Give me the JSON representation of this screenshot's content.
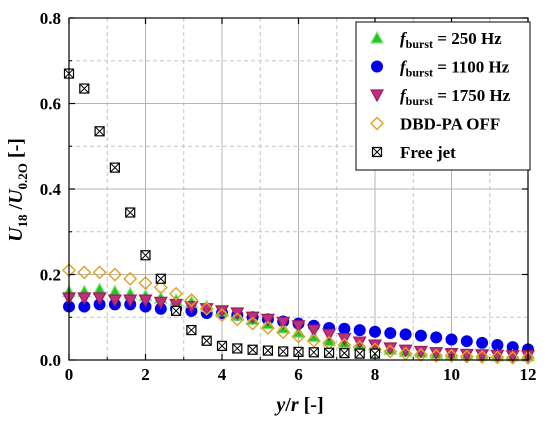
{
  "chart_data": {
    "type": "scatter",
    "xlabel": {
      "var": "y",
      "slash": "/",
      "var2": "r",
      "unit": " [-]"
    },
    "ylabel": {
      "u": "U",
      "sub1": "18",
      "slash": " /",
      "u2": "U",
      "sub2": "0.2O",
      "unit": " [-]"
    },
    "xlim": [
      0,
      12
    ],
    "ylim": [
      0,
      0.8
    ],
    "xticks": [
      "0",
      "2",
      "4",
      "6",
      "8",
      "10",
      "12"
    ],
    "yticks": [
      "0.0",
      "0.2",
      "0.4",
      "0.6",
      "0.8"
    ],
    "grid": true,
    "legend_position": "top-right",
    "legend": [
      {
        "prefix": "f",
        "sub": "burst",
        "rest": " = 250 Hz"
      },
      {
        "prefix": "f",
        "sub": "burst",
        "rest": " = 1100 Hz"
      },
      {
        "prefix": "f",
        "sub": "burst",
        "rest": " = 1750 Hz"
      },
      {
        "prefix": "",
        "sub": "",
        "rest": "DBD-PA OFF"
      },
      {
        "prefix": "",
        "sub": "",
        "rest": "Free jet"
      }
    ],
    "series": [
      {
        "marker": "triangle-up",
        "fill": "#22c322",
        "stroke": "#7de87d",
        "points": [
          [
            0,
            0.16
          ],
          [
            0.4,
            0.16
          ],
          [
            0.8,
            0.165
          ],
          [
            1.2,
            0.16
          ],
          [
            1.6,
            0.155
          ],
          [
            2.0,
            0.15
          ],
          [
            2.4,
            0.145
          ],
          [
            2.8,
            0.14
          ],
          [
            3.2,
            0.135
          ],
          [
            3.6,
            0.125
          ],
          [
            4.0,
            0.115
          ],
          [
            4.4,
            0.105
          ],
          [
            4.8,
            0.095
          ],
          [
            5.2,
            0.085
          ],
          [
            5.6,
            0.075
          ],
          [
            6.0,
            0.065
          ],
          [
            6.4,
            0.055
          ],
          [
            6.8,
            0.045
          ],
          [
            7.2,
            0.04
          ],
          [
            7.6,
            0.035
          ],
          [
            8.0,
            0.03
          ],
          [
            8.4,
            0.025
          ],
          [
            8.8,
            0.02
          ],
          [
            9.2,
            0.018
          ],
          [
            9.6,
            0.015
          ],
          [
            10.0,
            0.013
          ],
          [
            10.4,
            0.012
          ],
          [
            10.8,
            0.011
          ],
          [
            11.2,
            0.01
          ],
          [
            11.6,
            0.01
          ],
          [
            12.0,
            0.01
          ]
        ]
      },
      {
        "marker": "circle",
        "fill": "#0000ee",
        "stroke": "#0000ee",
        "points": [
          [
            0,
            0.125
          ],
          [
            0.4,
            0.125
          ],
          [
            0.8,
            0.13
          ],
          [
            1.2,
            0.13
          ],
          [
            1.6,
            0.13
          ],
          [
            2.0,
            0.125
          ],
          [
            2.4,
            0.12
          ],
          [
            2.8,
            0.12
          ],
          [
            3.2,
            0.115
          ],
          [
            3.6,
            0.11
          ],
          [
            4.0,
            0.11
          ],
          [
            4.4,
            0.105
          ],
          [
            4.8,
            0.1
          ],
          [
            5.2,
            0.095
          ],
          [
            5.6,
            0.09
          ],
          [
            6.0,
            0.085
          ],
          [
            6.4,
            0.08
          ],
          [
            6.8,
            0.075
          ],
          [
            7.2,
            0.073
          ],
          [
            7.6,
            0.07
          ],
          [
            8.0,
            0.066
          ],
          [
            8.4,
            0.063
          ],
          [
            8.8,
            0.06
          ],
          [
            9.2,
            0.057
          ],
          [
            9.6,
            0.053
          ],
          [
            10.0,
            0.048
          ],
          [
            10.4,
            0.044
          ],
          [
            10.8,
            0.04
          ],
          [
            11.2,
            0.035
          ],
          [
            11.6,
            0.03
          ],
          [
            12.0,
            0.025
          ]
        ]
      },
      {
        "marker": "triangle-down",
        "fill": "#c0307a",
        "stroke": "#a01a60",
        "points": [
          [
            0,
            0.145
          ],
          [
            0.4,
            0.145
          ],
          [
            0.8,
            0.145
          ],
          [
            1.2,
            0.14
          ],
          [
            1.6,
            0.14
          ],
          [
            2.0,
            0.14
          ],
          [
            2.4,
            0.135
          ],
          [
            2.8,
            0.13
          ],
          [
            3.2,
            0.125
          ],
          [
            3.6,
            0.12
          ],
          [
            4.0,
            0.115
          ],
          [
            4.4,
            0.11
          ],
          [
            4.8,
            0.1
          ],
          [
            5.2,
            0.095
          ],
          [
            5.6,
            0.088
          ],
          [
            6.0,
            0.08
          ],
          [
            6.4,
            0.07
          ],
          [
            6.8,
            0.06
          ],
          [
            7.2,
            0.05
          ],
          [
            7.6,
            0.042
          ],
          [
            8.0,
            0.035
          ],
          [
            8.4,
            0.028
          ],
          [
            8.8,
            0.023
          ],
          [
            9.2,
            0.02
          ],
          [
            9.6,
            0.017
          ],
          [
            10.0,
            0.015
          ],
          [
            10.4,
            0.013
          ],
          [
            10.8,
            0.012
          ],
          [
            11.2,
            0.011
          ],
          [
            11.6,
            0.01
          ],
          [
            12.0,
            0.01
          ]
        ]
      },
      {
        "marker": "diamond",
        "fill": "none",
        "stroke": "#e0a020",
        "points": [
          [
            0,
            0.21
          ],
          [
            0.4,
            0.205
          ],
          [
            0.8,
            0.205
          ],
          [
            1.2,
            0.2
          ],
          [
            1.6,
            0.19
          ],
          [
            2.0,
            0.18
          ],
          [
            2.4,
            0.17
          ],
          [
            2.8,
            0.155
          ],
          [
            3.2,
            0.14
          ],
          [
            3.6,
            0.12
          ],
          [
            4.0,
            0.105
          ],
          [
            4.4,
            0.095
          ],
          [
            4.8,
            0.085
          ],
          [
            5.2,
            0.075
          ],
          [
            5.6,
            0.065
          ],
          [
            6.0,
            0.055
          ],
          [
            6.4,
            0.045
          ],
          [
            6.8,
            0.04
          ],
          [
            7.2,
            0.035
          ],
          [
            7.6,
            0.03
          ],
          [
            8.0,
            0.025
          ],
          [
            8.4,
            0.02
          ],
          [
            8.8,
            0.015
          ],
          [
            9.2,
            0.012
          ],
          [
            9.6,
            0.01
          ],
          [
            10.0,
            0.01
          ],
          [
            10.4,
            0.008
          ],
          [
            10.8,
            0.007
          ],
          [
            11.2,
            0.006
          ],
          [
            11.6,
            0.005
          ],
          [
            12.0,
            0.005
          ]
        ]
      },
      {
        "marker": "boxx",
        "fill": "none",
        "stroke": "#000000",
        "points": [
          [
            0,
            0.67
          ],
          [
            0.4,
            0.635
          ],
          [
            0.8,
            0.535
          ],
          [
            1.2,
            0.45
          ],
          [
            1.6,
            0.345
          ],
          [
            2.0,
            0.245
          ],
          [
            2.4,
            0.19
          ],
          [
            2.8,
            0.115
          ],
          [
            3.2,
            0.07
          ],
          [
            3.6,
            0.045
          ],
          [
            4.0,
            0.033
          ],
          [
            4.4,
            0.027
          ],
          [
            4.8,
            0.024
          ],
          [
            5.2,
            0.022
          ],
          [
            5.6,
            0.02
          ],
          [
            6.0,
            0.019
          ],
          [
            6.4,
            0.018
          ],
          [
            6.8,
            0.017
          ],
          [
            7.2,
            0.016
          ],
          [
            7.6,
            0.015
          ],
          [
            8.0,
            0.015
          ]
        ]
      }
    ]
  }
}
